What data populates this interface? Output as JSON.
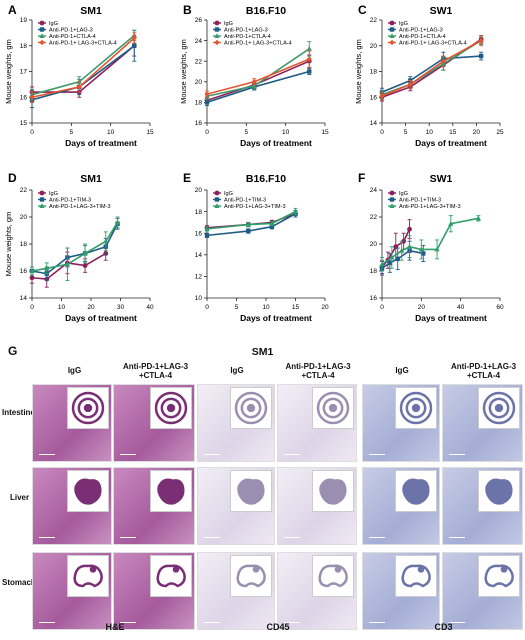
{
  "panels": [
    {
      "letter": "A",
      "title": "SM1",
      "xlabel": "Days of treatment",
      "ylabel": "Mouse weights, gm",
      "xticks": [
        0,
        5,
        10,
        15
      ],
      "yticks": [
        15,
        16,
        17,
        18,
        19
      ],
      "xlim": [
        0,
        15
      ],
      "ylim": [
        15,
        19
      ],
      "legend": [
        "IgG",
        "Anti-PD-1+LAG-3",
        "Anti-PD-1+CTLA-4",
        "Anti-PD-1+ LAG-3+CTLA-4"
      ]
    },
    {
      "letter": "B",
      "title": "B16.F10",
      "xlabel": "Days of treatment",
      "ylabel": "Mouse weights, gm",
      "xticks": [
        0,
        5,
        10,
        15
      ],
      "yticks": [
        16,
        18,
        20,
        22,
        24,
        26
      ],
      "xlim": [
        0,
        15
      ],
      "ylim": [
        16,
        26
      ],
      "legend": [
        "IgG",
        "Anti-PD-1+LAG-3",
        "Anti-PD-1+CTLA-4",
        "Anti-PD-1+ LAG-3+CTLA-4"
      ]
    },
    {
      "letter": "C",
      "title": "SW1",
      "xlabel": "Days of treatment",
      "ylabel": "Mouse weights, gm",
      "xticks": [
        0,
        5,
        10,
        15,
        20,
        25
      ],
      "yticks": [
        14,
        16,
        18,
        20,
        22
      ],
      "xlim": [
        0,
        25
      ],
      "ylim": [
        14,
        22
      ],
      "legend": [
        "IgG",
        "Anti-PD-1+LAG-3",
        "Anti-PD-1+CTLA-4",
        "Anti-PD-1+ LAG-3+CTLA-4"
      ]
    },
    {
      "letter": "D",
      "title": "SM1",
      "xlabel": "Days of treatment",
      "ylabel": "Mouse weights, gm",
      "xticks": [
        0,
        10,
        20,
        30,
        40
      ],
      "yticks": [
        14,
        16,
        18,
        20,
        22
      ],
      "xlim": [
        0,
        40
      ],
      "ylim": [
        14,
        22
      ],
      "legend": [
        "IgG",
        "Anti-PD-1+TIM-3",
        "Anti-PD-1+LAG-3+TIM-3"
      ]
    },
    {
      "letter": "E",
      "title": "B16.F10",
      "xlabel": "Days of treatment",
      "ylabel": "",
      "xticks": [
        0,
        5,
        10,
        15,
        20
      ],
      "yticks": [
        10,
        12,
        14,
        16,
        18,
        20
      ],
      "xlim": [
        0,
        20
      ],
      "ylim": [
        10,
        20
      ],
      "legend": [
        "IgG",
        "Anti-PD-1+TIM-3",
        "Anti-PD-1+LAG-3+TIM-3"
      ]
    },
    {
      "letter": "F",
      "title": "SW1",
      "xlabel": "Days of treatment",
      "ylabel": "",
      "xticks": [
        0,
        20,
        40,
        60
      ],
      "yticks": [
        16,
        18,
        20,
        22,
        24
      ],
      "xlim": [
        0,
        60
      ],
      "ylim": [
        16,
        24
      ],
      "legend": [
        "IgG",
        "Anti-PD-1+TIM-3",
        "Anti-PD-1+LAG-3+TIM-3"
      ]
    }
  ],
  "colors": {
    "igg": "#8e1f5a",
    "lag3": "#1f5c86",
    "ctla4": "#3e9a6a",
    "triple": "#e2552f",
    "tim3": "#1f5c86",
    "triple_tim": "#2f9e6a",
    "he": "#b86aa8",
    "ihc": "#e3dff0",
    "cd3": "#aeb6d8"
  },
  "chart_data": [
    {
      "type": "line",
      "panel": "A",
      "title": "SM1",
      "xlabel": "Days of treatment",
      "ylabel": "Mouse weights, gm",
      "xlim": [
        0,
        15
      ],
      "ylim": [
        15,
        19
      ],
      "series": [
        {
          "name": "IgG",
          "x": [
            0,
            6,
            13
          ],
          "y": [
            16.2,
            16.2,
            18.0
          ],
          "err": [
            0.2,
            0.2,
            0.4
          ]
        },
        {
          "name": "Anti-PD-1+LAG-3",
          "x": [
            0,
            6,
            13
          ],
          "y": [
            15.9,
            16.4,
            18.0
          ],
          "err": [
            0.3,
            0.3,
            0.6
          ]
        },
        {
          "name": "Anti-PD-1+CTLA-4",
          "x": [
            0,
            6,
            13
          ],
          "y": [
            16.1,
            16.6,
            18.4
          ],
          "err": [
            0.2,
            0.2,
            0.2
          ]
        },
        {
          "name": "Anti-PD-1+ LAG-3+CTLA-4",
          "x": [
            0,
            6,
            13
          ],
          "y": [
            16.0,
            16.4,
            18.3
          ],
          "err": [
            0.2,
            0.2,
            0.2
          ]
        }
      ]
    },
    {
      "type": "line",
      "panel": "B",
      "title": "B16.F10",
      "xlabel": "Days of treatment",
      "ylabel": "Mouse weights, gm",
      "xlim": [
        0,
        15
      ],
      "ylim": [
        16,
        26
      ],
      "series": [
        {
          "name": "IgG",
          "x": [
            0,
            6,
            13
          ],
          "y": [
            18.2,
            19.7,
            22.0
          ],
          "err": [
            0.3,
            0.3,
            0.6
          ]
        },
        {
          "name": "Anti-PD-1+LAG-3",
          "x": [
            0,
            6,
            13
          ],
          "y": [
            18.0,
            19.5,
            21.0
          ],
          "err": [
            0.3,
            0.3,
            0.3
          ]
        },
        {
          "name": "Anti-PD-1+CTLA-4",
          "x": [
            0,
            6,
            13
          ],
          "y": [
            18.6,
            19.6,
            23.2
          ],
          "err": [
            0.3,
            0.3,
            0.7
          ]
        },
        {
          "name": "Anti-PD-1+ LAG-3+CTLA-4",
          "x": [
            0,
            6,
            13
          ],
          "y": [
            18.8,
            20.0,
            22.2
          ],
          "err": [
            0.3,
            0.3,
            0.8
          ]
        }
      ]
    },
    {
      "type": "line",
      "panel": "C",
      "title": "SW1",
      "xlabel": "Days of treatment",
      "ylabel": "Mouse weights, gm",
      "xlim": [
        0,
        25
      ],
      "ylim": [
        14,
        22
      ],
      "series": [
        {
          "name": "IgG",
          "x": [
            0,
            6,
            13,
            21
          ],
          "y": [
            16.0,
            16.8,
            18.5,
            20.5
          ],
          "err": [
            0.3,
            0.3,
            0.4,
            0.3
          ]
        },
        {
          "name": "Anti-PD-1+LAG-3",
          "x": [
            0,
            6,
            13,
            21
          ],
          "y": [
            16.4,
            17.3,
            19.0,
            19.2
          ],
          "err": [
            0.3,
            0.3,
            0.5,
            0.3
          ]
        },
        {
          "name": "Anti-PD-1+CTLA-4",
          "x": [
            0,
            6,
            13,
            21
          ],
          "y": [
            16.2,
            17.0,
            18.6,
            20.4
          ],
          "err": [
            0.3,
            0.3,
            0.5,
            0.3
          ]
        },
        {
          "name": "Anti-PD-1+ LAG-3+CTLA-4",
          "x": [
            0,
            6,
            13,
            21
          ],
          "y": [
            16.1,
            17.0,
            18.8,
            20.4
          ],
          "err": [
            0.3,
            0.3,
            0.4,
            0.4
          ]
        }
      ]
    },
    {
      "type": "line",
      "panel": "D",
      "title": "SM1",
      "xlabel": "Days of treatment",
      "ylabel": "Mouse weights, gm",
      "xlim": [
        0,
        40
      ],
      "ylim": [
        14,
        22
      ],
      "series": [
        {
          "name": "IgG",
          "x": [
            0,
            5,
            12,
            18,
            25
          ],
          "y": [
            15.5,
            15.4,
            16.6,
            16.4,
            17.3
          ],
          "err": [
            0.4,
            0.6,
            0.8,
            0.5,
            0.5
          ]
        },
        {
          "name": "Anti-PD-1+TIM-3",
          "x": [
            0,
            5,
            12,
            18,
            25,
            29
          ],
          "y": [
            16.0,
            15.8,
            17.0,
            17.3,
            17.8,
            19.5
          ],
          "err": [
            0.3,
            0.5,
            0.7,
            0.6,
            0.6,
            0.4
          ]
        },
        {
          "name": "Anti-PD-1+LAG-3+TIM-3",
          "x": [
            0,
            5,
            12,
            18,
            25,
            29
          ],
          "y": [
            16.0,
            16.2,
            16.5,
            17.3,
            18.2,
            19.6
          ],
          "err": [
            0.3,
            0.4,
            1.2,
            0.7,
            0.7,
            0.4
          ]
        }
      ]
    },
    {
      "type": "line",
      "panel": "E",
      "title": "B16.F10",
      "xlabel": "Days of treatment",
      "ylabel": "",
      "xlim": [
        0,
        20
      ],
      "ylim": [
        10,
        20
      ],
      "series": [
        {
          "name": "IgG",
          "x": [
            0,
            7,
            11,
            15
          ],
          "y": [
            16.5,
            16.8,
            17.0,
            17.8
          ],
          "err": [
            0.2,
            0.2,
            0.2,
            0.3
          ]
        },
        {
          "name": "Anti-PD-1+TIM-3",
          "x": [
            0,
            7,
            11,
            15
          ],
          "y": [
            15.8,
            16.2,
            16.6,
            17.8
          ],
          "err": [
            0.2,
            0.2,
            0.2,
            0.3
          ]
        },
        {
          "name": "Anti-PD-1+LAG-3+TIM-3",
          "x": [
            0,
            7,
            11,
            15
          ],
          "y": [
            16.4,
            16.8,
            16.9,
            18.0
          ],
          "err": [
            0.2,
            0.2,
            0.2,
            0.3
          ]
        }
      ]
    },
    {
      "type": "line",
      "panel": "F",
      "title": "SW1",
      "xlabel": "Days of treatment",
      "ylabel": "",
      "xlim": [
        0,
        60
      ],
      "ylim": [
        16,
        24
      ],
      "series": [
        {
          "name": "IgG",
          "x": [
            0,
            3,
            7,
            11,
            14
          ],
          "y": [
            18.3,
            18.8,
            19.8,
            20.2,
            21.1
          ],
          "err": [
            0.5,
            0.6,
            1.0,
            0.6,
            0.7
          ]
        },
        {
          "name": "Anti-PD-1+TIM-3",
          "x": [
            0,
            4,
            8,
            14,
            21
          ],
          "y": [
            18.2,
            18.6,
            18.9,
            19.5,
            19.3
          ],
          "err": [
            0.5,
            0.7,
            0.8,
            0.7,
            0.6
          ]
        },
        {
          "name": "Anti-PD-1+LAG-3+TIM-3",
          "x": [
            0,
            5,
            10,
            14,
            20,
            28,
            35,
            49
          ],
          "y": [
            18.5,
            19.0,
            19.5,
            19.8,
            19.6,
            19.6,
            21.5,
            21.9
          ],
          "err": [
            0.5,
            0.8,
            0.7,
            0.8,
            0.7,
            0.7,
            0.6,
            0.2
          ]
        }
      ]
    }
  ],
  "panelG": {
    "letter": "G",
    "title": "SM1",
    "rows": [
      "Intestine",
      "Liver",
      "Stomach"
    ],
    "columns": [
      "IgG",
      "Anti-PD-1+LAG-3 +CTLA-4",
      "IgG",
      "Anti-PD-1+LAG-3 +CTLA-4",
      "IgG",
      "Anti-PD-1+LAG-3 +CTLA-4"
    ],
    "stains": [
      "H&E",
      "CD45",
      "CD3"
    ]
  }
}
